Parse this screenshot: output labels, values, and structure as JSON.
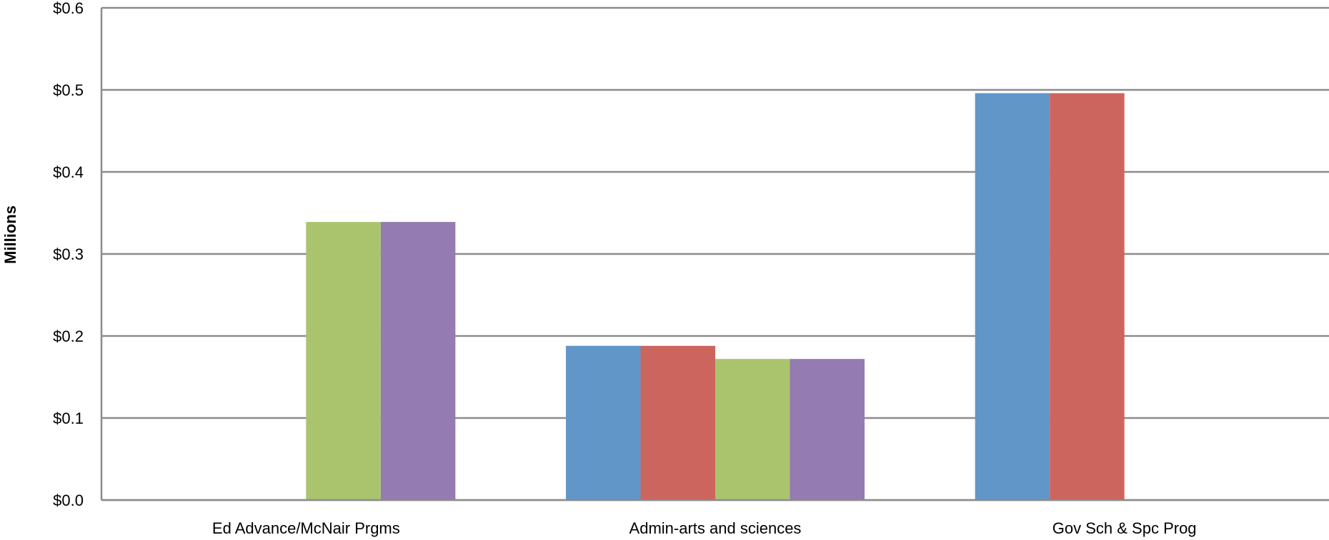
{
  "chart_data": {
    "type": "bar",
    "title": "",
    "xlabel": "",
    "ylabel": "Millions",
    "ylim": [
      0,
      0.6
    ],
    "yticks": [
      "$0.0",
      "$0.1",
      "$0.2",
      "$0.3",
      "$0.4",
      "$0.5",
      "$0.6"
    ],
    "grid": true,
    "legend": "none",
    "categories": [
      "Ed Advance/McNair Prgms",
      "Admin-arts and sciences",
      "Gov Sch & Spc Prog"
    ],
    "series": [
      {
        "color": "#6196C8",
        "values": [
          0,
          0.188,
          0.496
        ]
      },
      {
        "color": "#CD655F",
        "values": [
          0,
          0.188,
          0.496
        ]
      },
      {
        "color": "#AAC46D",
        "values": [
          0.339,
          0.172,
          0
        ]
      },
      {
        "color": "#947BB1",
        "values": [
          0.339,
          0.172,
          0
        ]
      }
    ]
  }
}
